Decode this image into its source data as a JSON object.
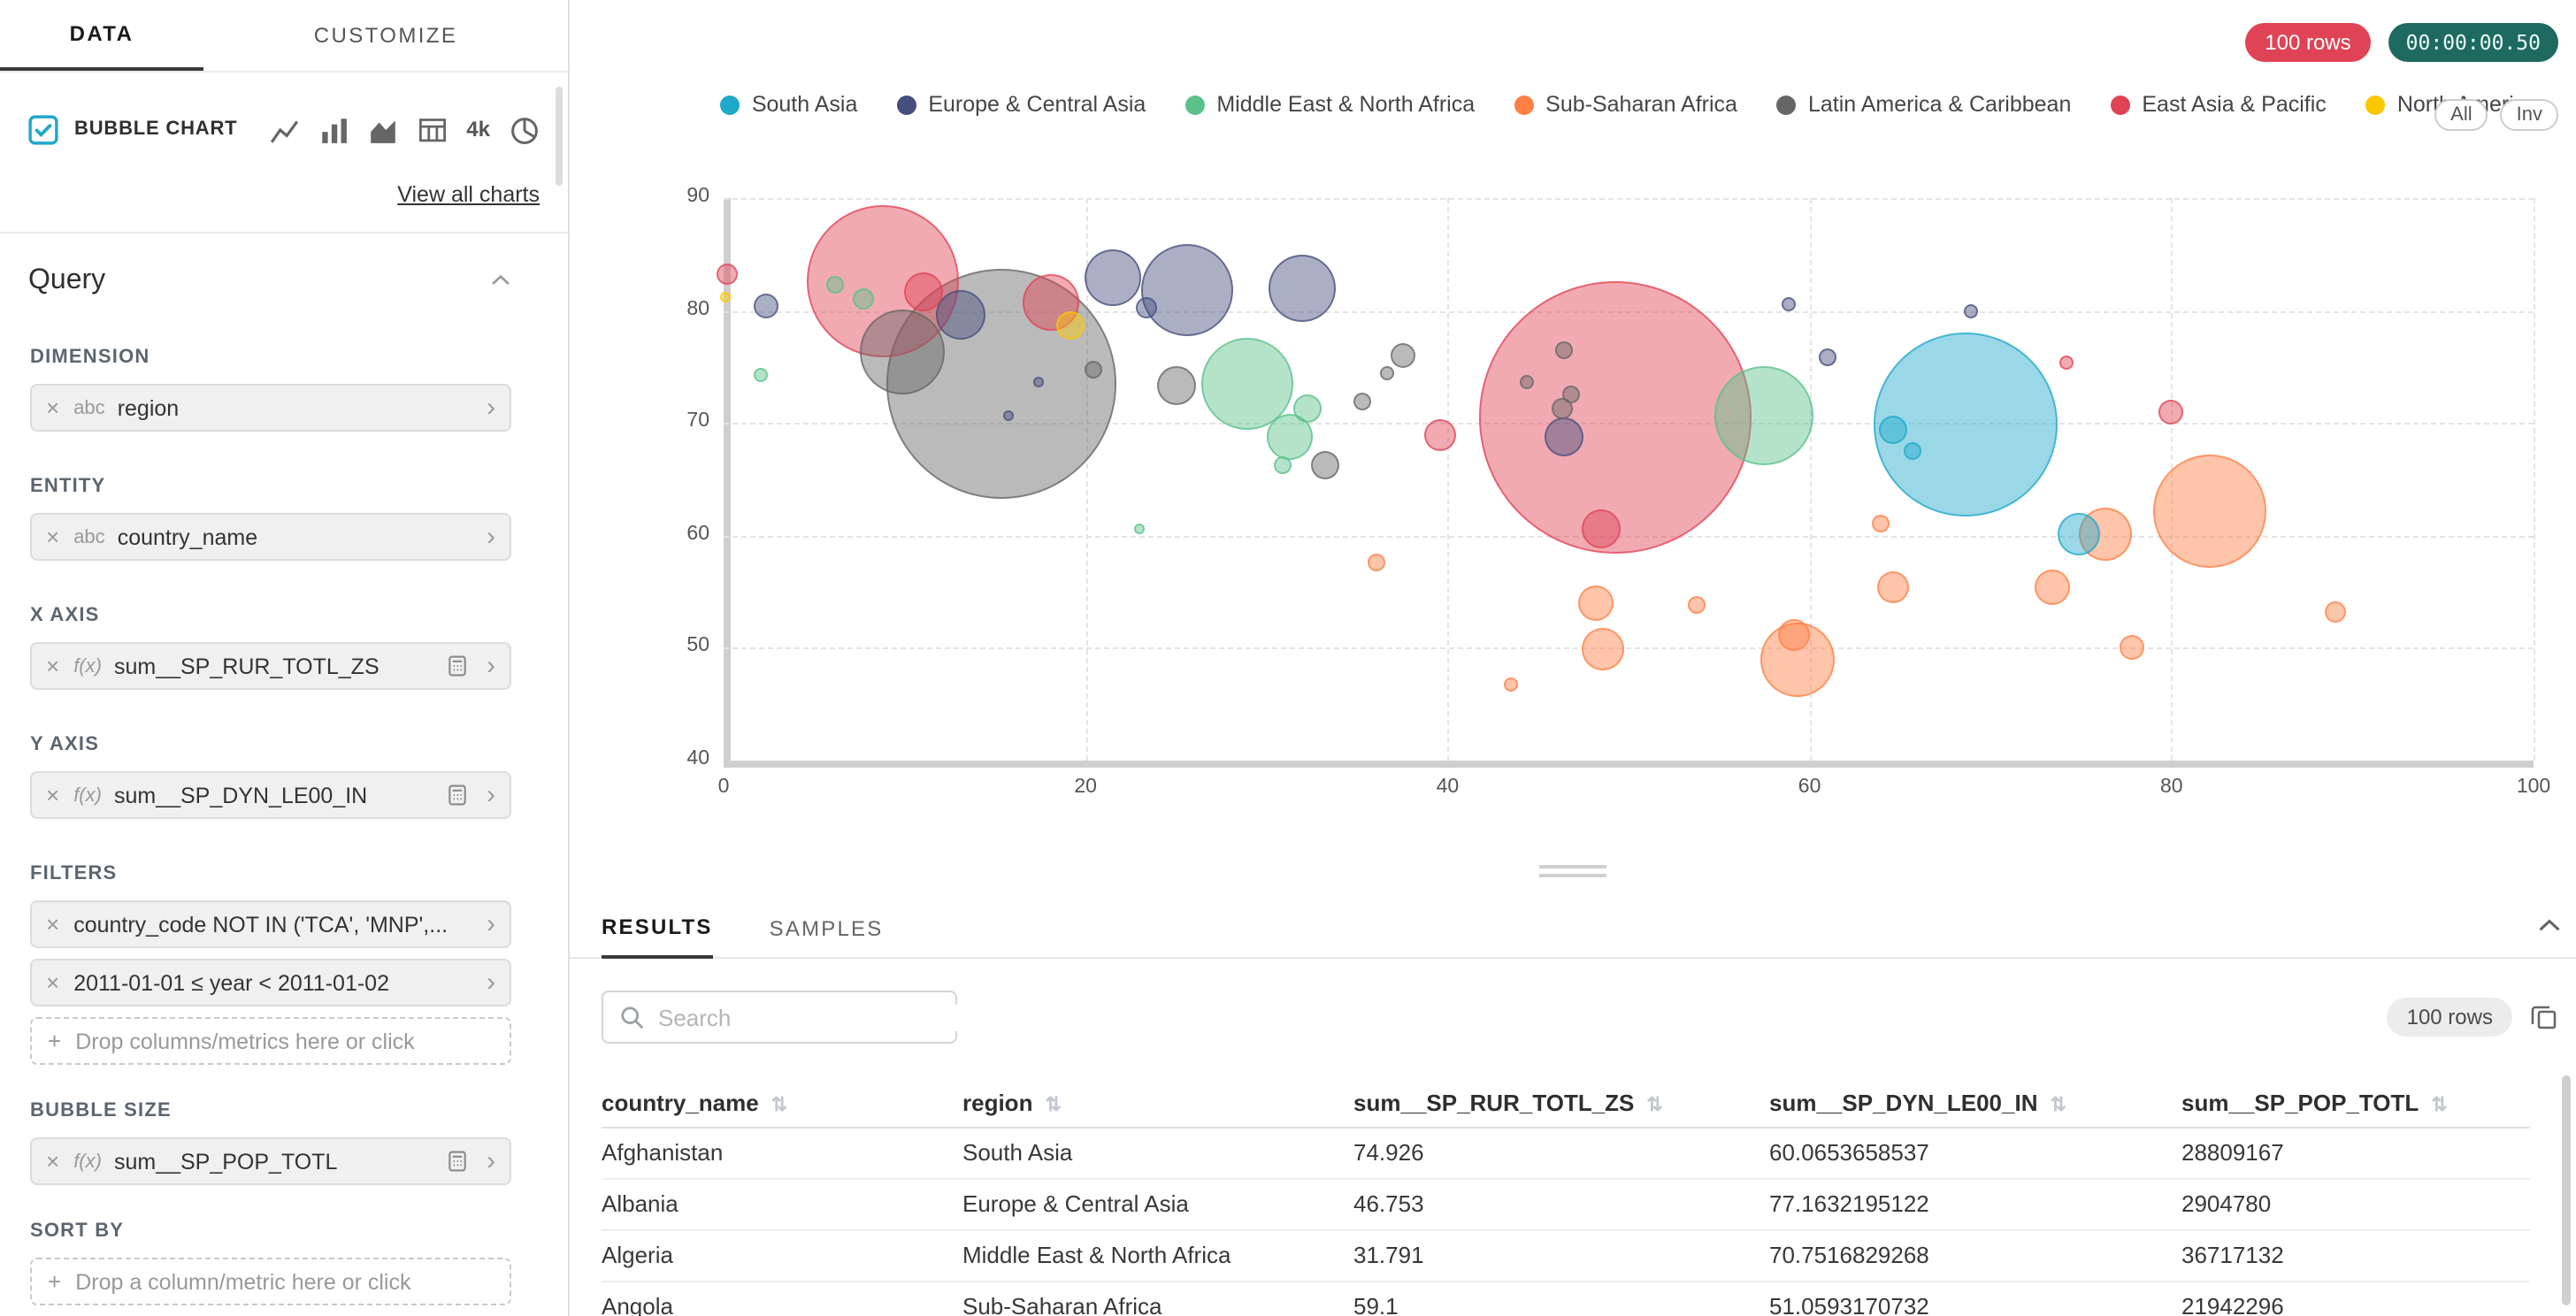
{
  "icons": {
    "remove": "×",
    "chevron_right": "›",
    "plus": "+",
    "sort": "⇅"
  },
  "sidebar": {
    "tabs": {
      "data": "DATA",
      "customize": "CUSTOMIZE"
    },
    "viz_picker": {
      "selected": "BUBBLE CHART",
      "more_label": "4k",
      "view_all": "View all charts"
    },
    "query": {
      "title": "Query",
      "dimension": {
        "label": "DIMENSION",
        "pill": {
          "prefix": "abc",
          "name": "region"
        }
      },
      "entity": {
        "label": "ENTITY",
        "pill": {
          "prefix": "abc",
          "name": "country_name"
        }
      },
      "x_axis": {
        "label": "X AXIS",
        "pill": {
          "prefix": "f(x)",
          "name": "sum__SP_RUR_TOTL_ZS"
        }
      },
      "y_axis": {
        "label": "Y AXIS",
        "pill": {
          "prefix": "f(x)",
          "name": "sum__SP_DYN_LE00_IN"
        }
      },
      "filters": {
        "label": "FILTERS",
        "pills": [
          "country_code NOT IN ('TCA', 'MNP',...",
          "2011-01-01 ≤ year < 2011-01-02"
        ],
        "dropzone": "Drop columns/metrics here or click"
      },
      "bubble_size": {
        "label": "BUBBLE SIZE",
        "pill": {
          "prefix": "f(x)",
          "name": "sum__SP_POP_TOTL"
        }
      },
      "sort_by": {
        "label": "SORT BY",
        "dropzone": "Drop a column/metric here or click"
      }
    }
  },
  "header": {
    "row_count": "100 rows",
    "timer": "00:00:00.50"
  },
  "legend": {
    "items": [
      {
        "label": "South Asia",
        "color": "#1FA8C9"
      },
      {
        "label": "Europe & Central Asia",
        "color": "#454E7C"
      },
      {
        "label": "Middle East & North Africa",
        "color": "#5AC189"
      },
      {
        "label": "Sub-Saharan Africa",
        "color": "#FF7F44"
      },
      {
        "label": "Latin America & Caribbean",
        "color": "#666666"
      },
      {
        "label": "East Asia & Pacific",
        "color": "#E04355"
      },
      {
        "label": "North America",
        "color": "#FCC700"
      }
    ],
    "all_label": "All",
    "inv_label": "Inv"
  },
  "chart_data": {
    "type": "scatter",
    "x_label": "sum__SP_RUR_TOTL_ZS",
    "y_label": "sum__SP_DYN_LE00_IN",
    "size_label": "sum__SP_POP_TOTL",
    "xlim": [
      0,
      100
    ],
    "ylim": [
      40,
      90
    ],
    "x_ticks": [
      0,
      20,
      40,
      60,
      80,
      100
    ],
    "y_ticks": [
      90,
      80,
      70,
      60,
      50,
      40
    ],
    "grid": true,
    "legend_position": "top",
    "bubbles": [
      {
        "x": 0.2,
        "y": 83.3,
        "r": 6,
        "region": "East Asia & Pacific"
      },
      {
        "x": 8.8,
        "y": 82.6,
        "r": 43,
        "region": "East Asia & Pacific"
      },
      {
        "x": 11.0,
        "y": 81.6,
        "r": 11,
        "region": "East Asia & Pacific"
      },
      {
        "x": 18.1,
        "y": 80.7,
        "r": 16,
        "region": "East Asia & Pacific"
      },
      {
        "x": 49.3,
        "y": 70.5,
        "r": 77,
        "region": "East Asia & Pacific"
      },
      {
        "x": 48.5,
        "y": 60.6,
        "r": 11,
        "region": "East Asia & Pacific"
      },
      {
        "x": 39.6,
        "y": 69.0,
        "r": 9,
        "region": "East Asia & Pacific"
      },
      {
        "x": 80.0,
        "y": 70.9,
        "r": 7,
        "region": "East Asia & Pacific"
      },
      {
        "x": 74.2,
        "y": 75.4,
        "r": 4,
        "region": "East Asia & Pacific"
      },
      {
        "x": 2.3,
        "y": 80.4,
        "r": 7,
        "region": "Europe & Central Asia"
      },
      {
        "x": 13.1,
        "y": 79.7,
        "r": 14,
        "region": "Europe & Central Asia"
      },
      {
        "x": 21.5,
        "y": 83.0,
        "r": 16,
        "region": "Europe & Central Asia"
      },
      {
        "x": 23.4,
        "y": 80.3,
        "r": 6,
        "region": "Europe & Central Asia"
      },
      {
        "x": 25.6,
        "y": 81.9,
        "r": 26,
        "region": "Europe & Central Asia"
      },
      {
        "x": 32.0,
        "y": 82.0,
        "r": 19,
        "region": "Europe & Central Asia"
      },
      {
        "x": 46.4,
        "y": 68.8,
        "r": 11,
        "region": "Europe & Central Asia"
      },
      {
        "x": 58.8,
        "y": 80.6,
        "r": 4,
        "region": "Europe & Central Asia"
      },
      {
        "x": 61.0,
        "y": 75.9,
        "r": 5,
        "region": "Europe & Central Asia"
      },
      {
        "x": 68.9,
        "y": 79.9,
        "r": 4,
        "region": "Europe & Central Asia"
      },
      {
        "x": 15.7,
        "y": 70.6,
        "r": 3,
        "region": "Europe & Central Asia"
      },
      {
        "x": 17.4,
        "y": 73.7,
        "r": 3,
        "region": "Europe & Central Asia"
      },
      {
        "x": 6.2,
        "y": 82.3,
        "r": 5,
        "region": "Middle East & North Africa"
      },
      {
        "x": 7.7,
        "y": 81.0,
        "r": 6,
        "region": "Middle East & North Africa"
      },
      {
        "x": 2.1,
        "y": 74.3,
        "r": 4,
        "region": "Middle East & North Africa"
      },
      {
        "x": 28.9,
        "y": 73.5,
        "r": 26,
        "region": "Middle East & North Africa"
      },
      {
        "x": 31.3,
        "y": 68.8,
        "r": 13,
        "region": "Middle East & North Africa"
      },
      {
        "x": 32.3,
        "y": 71.3,
        "r": 8,
        "region": "Middle East & North Africa"
      },
      {
        "x": 23.0,
        "y": 60.6,
        "r": 3,
        "region": "Middle East & North Africa"
      },
      {
        "x": 30.9,
        "y": 66.2,
        "r": 5,
        "region": "Middle East & North Africa"
      },
      {
        "x": 57.5,
        "y": 70.6,
        "r": 28,
        "region": "Middle East & North Africa"
      },
      {
        "x": 36.1,
        "y": 57.6,
        "r": 5,
        "region": "Sub-Saharan Africa"
      },
      {
        "x": 43.5,
        "y": 46.7,
        "r": 4,
        "region": "Sub-Saharan Africa"
      },
      {
        "x": 48.2,
        "y": 54.0,
        "r": 10,
        "region": "Sub-Saharan Africa"
      },
      {
        "x": 48.6,
        "y": 49.9,
        "r": 12,
        "region": "Sub-Saharan Africa"
      },
      {
        "x": 53.8,
        "y": 53.8,
        "r": 5,
        "region": "Sub-Saharan Africa"
      },
      {
        "x": 59.3,
        "y": 49.0,
        "r": 21,
        "region": "Sub-Saharan Africa"
      },
      {
        "x": 59.1,
        "y": 51.1,
        "r": 9,
        "region": "Sub-Saharan Africa"
      },
      {
        "x": 64.6,
        "y": 55.4,
        "r": 9,
        "region": "Sub-Saharan Africa"
      },
      {
        "x": 73.4,
        "y": 55.4,
        "r": 10,
        "region": "Sub-Saharan Africa"
      },
      {
        "x": 76.3,
        "y": 60.1,
        "r": 15,
        "region": "Sub-Saharan Africa"
      },
      {
        "x": 77.8,
        "y": 50.1,
        "r": 7,
        "region": "Sub-Saharan Africa"
      },
      {
        "x": 82.1,
        "y": 62.1,
        "r": 32,
        "region": "Sub-Saharan Africa"
      },
      {
        "x": 89.1,
        "y": 53.2,
        "r": 6,
        "region": "Sub-Saharan Africa"
      },
      {
        "x": 63.9,
        "y": 61.0,
        "r": 5,
        "region": "Sub-Saharan Africa"
      },
      {
        "x": 9.9,
        "y": 76.3,
        "r": 24,
        "region": "Latin America & Caribbean"
      },
      {
        "x": 15.3,
        "y": 73.5,
        "r": 65,
        "region": "Latin America & Caribbean"
      },
      {
        "x": 20.4,
        "y": 74.7,
        "r": 5,
        "region": "Latin America & Caribbean"
      },
      {
        "x": 25.0,
        "y": 73.4,
        "r": 11,
        "region": "Latin America & Caribbean"
      },
      {
        "x": 33.2,
        "y": 66.3,
        "r": 8,
        "region": "Latin America & Caribbean"
      },
      {
        "x": 35.3,
        "y": 71.9,
        "r": 5,
        "region": "Latin America & Caribbean"
      },
      {
        "x": 37.5,
        "y": 76.0,
        "r": 7,
        "region": "Latin America & Caribbean"
      },
      {
        "x": 36.7,
        "y": 74.4,
        "r": 4,
        "region": "Latin America & Caribbean"
      },
      {
        "x": 46.4,
        "y": 76.5,
        "r": 5,
        "region": "Latin America & Caribbean"
      },
      {
        "x": 44.4,
        "y": 73.7,
        "r": 4,
        "region": "Latin America & Caribbean"
      },
      {
        "x": 46.8,
        "y": 72.6,
        "r": 5,
        "region": "Latin America & Caribbean"
      },
      {
        "x": 46.3,
        "y": 71.3,
        "r": 6,
        "region": "Latin America & Caribbean"
      },
      {
        "x": 68.6,
        "y": 69.8,
        "r": 52,
        "region": "South Asia"
      },
      {
        "x": 64.6,
        "y": 69.4,
        "r": 8,
        "region": "South Asia"
      },
      {
        "x": 65.7,
        "y": 67.5,
        "r": 5,
        "region": "South Asia"
      },
      {
        "x": 74.9,
        "y": 60.1,
        "r": 12,
        "region": "South Asia"
      },
      {
        "x": 0.1,
        "y": 81.2,
        "r": 3,
        "region": "North America"
      },
      {
        "x": 19.2,
        "y": 78.7,
        "r": 8,
        "region": "North America"
      }
    ]
  },
  "results": {
    "tabs": {
      "results": "RESULTS",
      "samples": "SAMPLES"
    },
    "search_placeholder": "Search",
    "row_count": "100 rows",
    "table": {
      "headers": [
        "country_name",
        "region",
        "sum__SP_RUR_TOTL_ZS",
        "sum__SP_DYN_LE00_IN",
        "sum__SP_POP_TOTL"
      ],
      "rows": [
        [
          "Afghanistan",
          "South Asia",
          "74.926",
          "60.0653658537",
          "28809167"
        ],
        [
          "Albania",
          "Europe & Central Asia",
          "46.753",
          "77.1632195122",
          "2904780"
        ],
        [
          "Algeria",
          "Middle East & North Africa",
          "31.791",
          "70.7516829268",
          "36717132"
        ],
        [
          "Angola",
          "Sub-Saharan Africa",
          "59.1",
          "51.0593170732",
          "21942296"
        ]
      ]
    }
  }
}
